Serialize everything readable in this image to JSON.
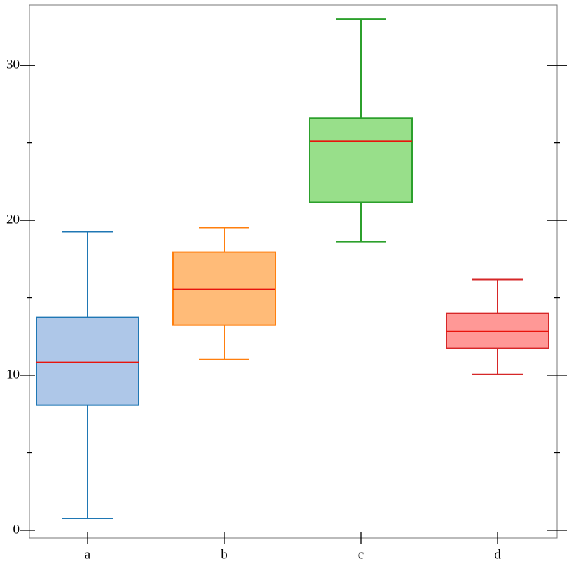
{
  "chart_data": {
    "type": "box",
    "categories": [
      "a",
      "b",
      "c",
      "d"
    ],
    "whislo": [
      0.77,
      11.01,
      18.62,
      10.06
    ],
    "q1": [
      8.07,
      13.23,
      21.16,
      11.74
    ],
    "med": [
      10.83,
      15.54,
      25.1,
      12.82
    ],
    "q3": [
      13.73,
      17.94,
      26.6,
      14.0
    ],
    "whishi": [
      19.26,
      19.53,
      32.99,
      16.18
    ],
    "colors": [
      "#aec7e8",
      "#ffbb78",
      "#98df8a",
      "#ff9896"
    ],
    "edgecolors": [
      "#1f77b4",
      "#ff7f0e",
      "#2ca02c",
      "#d62728"
    ],
    "median_color": "#e8140c",
    "ylim": [
      -0.5,
      33.9
    ],
    "yticks": [
      0,
      10,
      20,
      30
    ],
    "minor_yticks": [
      5,
      15,
      25
    ]
  }
}
